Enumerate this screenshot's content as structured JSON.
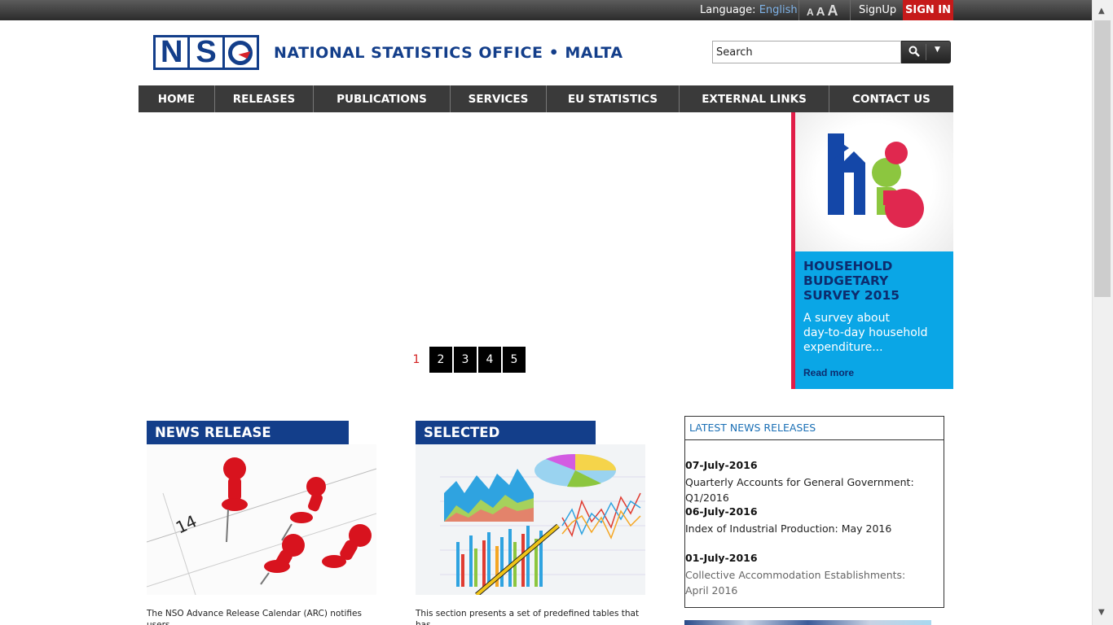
{
  "topbar": {
    "language_label": "Language:",
    "language_value": "English",
    "font_sizes": [
      "A",
      "A",
      "A"
    ],
    "signup": "SignUp",
    "signin": "SIGN IN"
  },
  "header": {
    "logo_letters": [
      "N",
      "S"
    ],
    "site_name": "NATIONAL STATISTICS OFFICE • MALTA",
    "search_placeholder": "Search"
  },
  "nav": {
    "items": [
      "HOME",
      "RELEASES",
      "PUBLICATIONS",
      "SERVICES",
      "EU STATISTICS",
      "EXTERNAL LINKS",
      "CONTACT US"
    ]
  },
  "slider": {
    "pages": [
      "1",
      "2",
      "3",
      "4",
      "5"
    ],
    "active_page": "1"
  },
  "banner": {
    "title_lines": [
      "HOUSEHOLD",
      "BUDGETARY",
      "SURVEY 2015"
    ],
    "desc_lines": [
      "A survey about",
      "day-to-day household",
      "expenditure..."
    ],
    "link": "Read more",
    "colors": {
      "accent": "#e11d48",
      "panel": "#0aa6e6"
    }
  },
  "calendar": {
    "title": "NEWS RELEASE CALENDAR",
    "image_text": "14",
    "blurb": "The NSO Advance Release Calendar (ARC) notifies users"
  },
  "indicators": {
    "title": "SELECTED INDICATORS",
    "blurb": "This section presents a set of predefined tables that has"
  },
  "latest_news": {
    "header": "LATEST NEWS RELEASES",
    "entries": [
      {
        "date": "07-July-2016",
        "title": "Quarterly Accounts for General Government: Q1/2016"
      },
      {
        "date": "06-July-2016",
        "title": "Index of Industrial Production: May 2016"
      },
      {
        "date": "01-July-2016",
        "title_line1": "Collective Accommodation Establishments:",
        "title_line2": "April 2016"
      }
    ]
  }
}
